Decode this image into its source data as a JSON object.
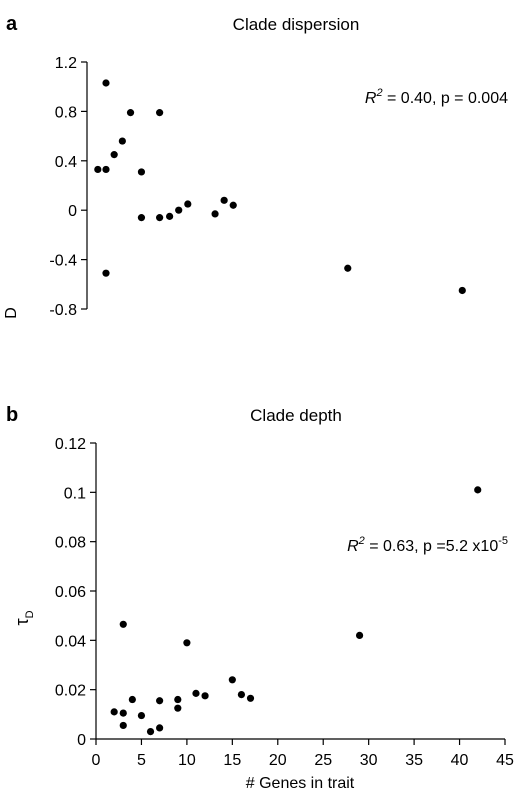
{
  "chart_data": [
    {
      "type": "scatter",
      "panel": "a",
      "title": "Clade dispersion",
      "ylabel": "D",
      "xlabel": "",
      "xlim": [
        0,
        45
      ],
      "ylim": [
        -0.8,
        1.2
      ],
      "yticks": [
        -0.8,
        -0.4,
        0,
        0.4,
        0.8,
        1.2
      ],
      "ytick_labels": [
        "-0.8",
        "-0.4",
        "0",
        "0.4",
        "0.8",
        "1.2"
      ],
      "annotation": {
        "r2_label": "R",
        "r2_sup": "2",
        "text": " = 0.40, p = 0.004"
      },
      "points": [
        {
          "x": 0.2,
          "y": 0.33
        },
        {
          "x": 1.1,
          "y": 0.33
        },
        {
          "x": 1.1,
          "y": 1.03
        },
        {
          "x": 1.1,
          "y": -0.51
        },
        {
          "x": 2.0,
          "y": 0.45
        },
        {
          "x": 2.9,
          "y": 0.56
        },
        {
          "x": 3.8,
          "y": 0.79
        },
        {
          "x": 5.0,
          "y": 0.31
        },
        {
          "x": 5.0,
          "y": -0.06
        },
        {
          "x": 7.0,
          "y": 0.79
        },
        {
          "x": 7.0,
          "y": -0.06
        },
        {
          "x": 8.1,
          "y": -0.05
        },
        {
          "x": 9.1,
          "y": 0.0
        },
        {
          "x": 10.1,
          "y": 0.05
        },
        {
          "x": 13.1,
          "y": -0.03
        },
        {
          "x": 14.1,
          "y": 0.08
        },
        {
          "x": 15.1,
          "y": 0.04
        },
        {
          "x": 27.7,
          "y": -0.47
        },
        {
          "x": 40.3,
          "y": -0.65
        }
      ]
    },
    {
      "type": "scatter",
      "panel": "b",
      "title": "Clade depth",
      "ylabel": "τ",
      "ylabel_sub": "D",
      "xlabel": "# Genes in trait",
      "xlim": [
        0,
        45
      ],
      "ylim": [
        0,
        0.12
      ],
      "xticks": [
        0,
        5,
        10,
        15,
        20,
        25,
        30,
        35,
        40,
        45
      ],
      "xtick_labels": [
        "0",
        "5",
        "10",
        "15",
        "20",
        "25",
        "30",
        "35",
        "40",
        "45"
      ],
      "yticks": [
        0,
        0.02,
        0.04,
        0.06,
        0.08,
        0.1,
        0.12
      ],
      "ytick_labels": [
        "0",
        "0.02",
        "0.04",
        "0.06",
        "0.08",
        "0.1",
        "0.12"
      ],
      "annotation": {
        "r2_label": "R",
        "r2_sup": "2",
        "text": " = 0.63, p =5.2 x10",
        "exp": "-5"
      },
      "points": [
        {
          "x": 2,
          "y": 0.011
        },
        {
          "x": 3,
          "y": 0.0465
        },
        {
          "x": 3,
          "y": 0.0105
        },
        {
          "x": 3,
          "y": 0.0055
        },
        {
          "x": 4,
          "y": 0.016
        },
        {
          "x": 5,
          "y": 0.0095
        },
        {
          "x": 6,
          "y": 0.003
        },
        {
          "x": 7,
          "y": 0.0155
        },
        {
          "x": 7,
          "y": 0.0045
        },
        {
          "x": 9,
          "y": 0.016
        },
        {
          "x": 9,
          "y": 0.0125
        },
        {
          "x": 10,
          "y": 0.039
        },
        {
          "x": 11,
          "y": 0.0185
        },
        {
          "x": 12,
          "y": 0.0175
        },
        {
          "x": 15,
          "y": 0.024
        },
        {
          "x": 16,
          "y": 0.018
        },
        {
          "x": 17,
          "y": 0.0165
        },
        {
          "x": 29,
          "y": 0.042
        },
        {
          "x": 42,
          "y": 0.101
        }
      ]
    }
  ]
}
